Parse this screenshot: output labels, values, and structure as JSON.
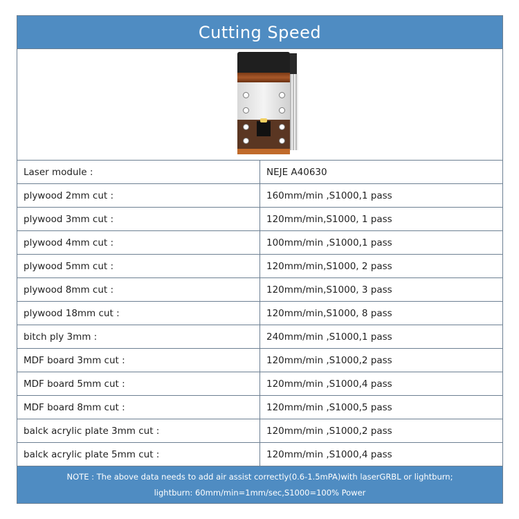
{
  "title": "Cutting Speed",
  "image": {
    "icon": "laser-module-image"
  },
  "rows": [
    {
      "label": "Laser module :",
      "value": "NEJE A40630"
    },
    {
      "label": "plywood 2mm cut :",
      "value": "160mm/min ,S1000,1 pass"
    },
    {
      "label": "plywood 3mm cut :",
      "value": "120mm/min,S1000, 1 pass"
    },
    {
      "label": "plywood 4mm cut :",
      "value": "100mm/min ,S1000,1 pass"
    },
    {
      "label": "plywood 5mm cut :",
      "value": "120mm/min,S1000, 2 pass"
    },
    {
      "label": "plywood 8mm cut :",
      "value": "120mm/min,S1000, 3 pass"
    },
    {
      "label": "plywood 18mm cut :",
      "value": "120mm/min,S1000, 8 pass"
    },
    {
      "label": "bitch ply 3mm :",
      "value": "240mm/min ,S1000,1 pass"
    },
    {
      "label": "MDF board 3mm cut :",
      "value": "120mm/min ,S1000,2 pass"
    },
    {
      "label": "MDF board 5mm cut :",
      "value": "120mm/min ,S1000,4 pass"
    },
    {
      "label": "MDF board 8mm cut :",
      "value": "120mm/min ,S1000,5 pass"
    },
    {
      "label": "balck acrylic plate 3mm cut :",
      "value": "120mm/min ,S1000,2 pass"
    },
    {
      "label": "balck acrylic plate 5mm cut :",
      "value": "120mm/min ,S1000,4 pass"
    }
  ],
  "note": {
    "line1": "NOTE : The above data needs to add air assist correctly(0.6-1.5mPA)with laserGRBL or lightburn;",
    "line2": "lightburn: 60mm/min=1mm/sec,S1000=100% Power"
  },
  "colors": {
    "header": "#4f8cc2",
    "border": "#6c7f92"
  }
}
